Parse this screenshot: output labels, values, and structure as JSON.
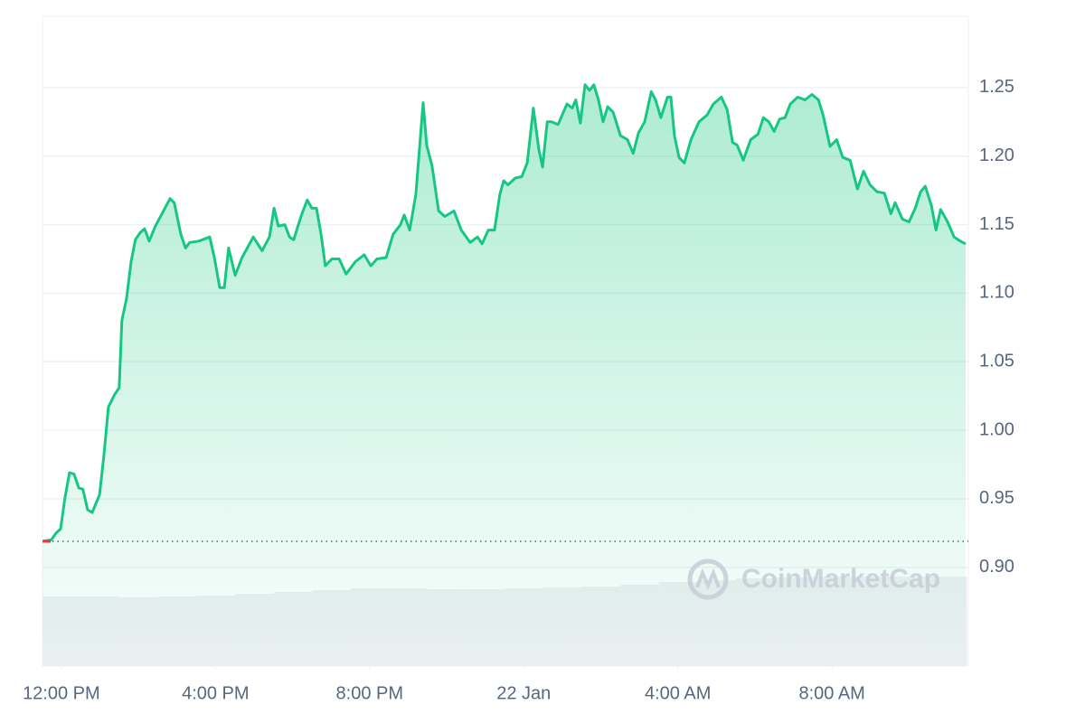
{
  "chart_data": {
    "type": "line",
    "x": [
      -0.49,
      -0.26,
      -0.14,
      -0.02,
      0.09,
      0.21,
      0.33,
      0.45,
      0.56,
      0.68,
      0.8,
      0.99,
      1.1,
      1.22,
      1.38,
      1.5,
      1.57,
      1.69,
      1.81,
      1.92,
      2.04,
      2.16,
      2.28,
      2.44,
      2.63,
      2.82,
      2.93,
      3.1,
      3.22,
      3.33,
      3.57,
      3.85,
      3.97,
      4.11,
      4.23,
      4.34,
      4.51,
      4.69,
      4.98,
      5.21,
      5.4,
      5.52,
      5.63,
      5.8,
      5.92,
      6.03,
      6.22,
      6.38,
      6.5,
      6.62,
      6.74,
      6.85,
      7.02,
      7.21,
      7.39,
      7.63,
      7.86,
      8.03,
      8.19,
      8.43,
      8.61,
      8.8,
      8.9,
      9.04,
      9.2,
      9.39,
      9.48,
      9.62,
      9.79,
      9.95,
      10.19,
      10.38,
      10.61,
      10.8,
      10.92,
      11.08,
      11.24,
      11.38,
      11.48,
      11.59,
      11.78,
      11.95,
      12.09,
      12.25,
      12.39,
      12.49,
      12.61,
      12.72,
      12.89,
      13.03,
      13.12,
      13.26,
      13.35,
      13.47,
      13.59,
      13.71,
      13.82,
      13.94,
      14.06,
      14.18,
      14.32,
      14.51,
      14.69,
      14.84,
      14.98,
      15.14,
      15.31,
      15.42,
      15.56,
      15.73,
      15.82,
      15.91,
      16.03,
      16.17,
      16.34,
      16.55,
      16.76,
      16.92,
      17.13,
      17.28,
      17.42,
      17.54,
      17.7,
      17.89,
      18.08,
      18.22,
      18.36,
      18.5,
      18.64,
      18.78,
      18.92,
      19.11,
      19.3,
      19.48,
      19.65,
      19.77,
      19.95,
      20.12,
      20.28,
      20.47,
      20.66,
      20.82,
      20.99,
      21.17,
      21.36,
      21.53,
      21.64,
      21.83,
      22.0,
      22.16,
      22.3,
      22.42,
      22.58,
      22.7,
      22.82,
      23.0,
      23.17,
      23.33,
      23.47
    ],
    "series": [
      {
        "color": "#16c784",
        "values": [
          0.919,
          0.92,
          0.925,
          0.928,
          0.95,
          0.969,
          0.968,
          0.958,
          0.957,
          0.942,
          0.94,
          0.953,
          0.981,
          1.017,
          1.026,
          1.031,
          1.08,
          1.096,
          1.123,
          1.139,
          1.144,
          1.147,
          1.138,
          1.149,
          1.159,
          1.169,
          1.166,
          1.143,
          1.133,
          1.137,
          1.138,
          1.141,
          1.126,
          1.104,
          1.104,
          1.133,
          1.113,
          1.126,
          1.141,
          1.131,
          1.141,
          1.162,
          1.149,
          1.15,
          1.141,
          1.139,
          1.156,
          1.168,
          1.162,
          1.162,
          1.143,
          1.12,
          1.125,
          1.125,
          1.114,
          1.123,
          1.128,
          1.12,
          1.125,
          1.126,
          1.143,
          1.15,
          1.157,
          1.146,
          1.172,
          1.239,
          1.208,
          1.193,
          1.16,
          1.156,
          1.16,
          1.146,
          1.137,
          1.141,
          1.136,
          1.146,
          1.146,
          1.172,
          1.182,
          1.179,
          1.184,
          1.185,
          1.195,
          1.235,
          1.205,
          1.192,
          1.225,
          1.225,
          1.223,
          1.232,
          1.238,
          1.235,
          1.241,
          1.224,
          1.252,
          1.248,
          1.252,
          1.241,
          1.225,
          1.236,
          1.232,
          1.215,
          1.212,
          1.202,
          1.217,
          1.225,
          1.247,
          1.241,
          1.228,
          1.243,
          1.243,
          1.215,
          1.199,
          1.195,
          1.212,
          1.225,
          1.23,
          1.238,
          1.243,
          1.234,
          1.21,
          1.208,
          1.197,
          1.212,
          1.216,
          1.228,
          1.225,
          1.218,
          1.227,
          1.228,
          1.238,
          1.243,
          1.241,
          1.245,
          1.241,
          1.23,
          1.207,
          1.212,
          1.199,
          1.197,
          1.176,
          1.189,
          1.179,
          1.174,
          1.173,
          1.158,
          1.166,
          1.154,
          1.152,
          1.162,
          1.174,
          1.178,
          1.164,
          1.146,
          1.161,
          1.152,
          1.141,
          1.138,
          1.136
        ]
      }
    ],
    "baseline": 0.919,
    "xlim": [
      -0.49,
      23.54
    ],
    "ylim": [
      0.828,
      1.302
    ],
    "xticks": [
      {
        "value": 0,
        "label": "12:00 PM"
      },
      {
        "value": 4,
        "label": "4:00 PM"
      },
      {
        "value": 8,
        "label": "8:00 PM"
      },
      {
        "value": 12,
        "label": "22 Jan"
      },
      {
        "value": 16,
        "label": "4:00 AM"
      },
      {
        "value": 20,
        "label": "8:00 AM"
      }
    ],
    "yticks": [
      {
        "value": 0.9,
        "label": "0.90"
      },
      0.95,
      {
        "value": 1.0,
        "label": "1.00"
      },
      1.05,
      {
        "value": 1.1,
        "label": "1.10"
      },
      1.15,
      {
        "value": 1.2,
        "label": "1.20"
      },
      1.25
    ],
    "grid": true,
    "volume": {
      "color": "#eef0f3",
      "bins": [
        -0.49,
        0.51,
        1.51,
        2.51,
        3.51,
        4.51,
        5.51,
        6.51,
        7.51,
        8.51,
        9.51,
        10.51,
        11.51,
        12.51,
        13.51,
        14.51,
        15.51,
        16.51,
        17.51,
        18.51,
        19.51,
        20.51,
        21.51,
        22.51,
        23.51
      ],
      "values": [
        77,
        77,
        76,
        77,
        78,
        80,
        82,
        84,
        86,
        86,
        85,
        85,
        86,
        87,
        88,
        90,
        93,
        95,
        97,
        98,
        99,
        99,
        99,
        99
      ],
      "ylim": [
        0,
        138
      ]
    },
    "watermark": "CoinMarketCap"
  }
}
